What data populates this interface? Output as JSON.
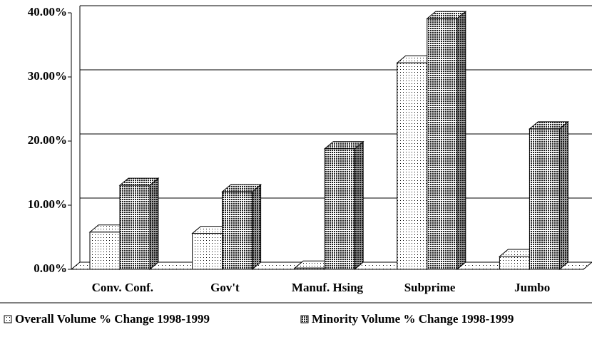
{
  "chart_data": {
    "type": "bar3d",
    "categories": [
      "Conv. Conf.",
      "Gov't",
      "Manuf. Hsing",
      "Subprime",
      "Jumbo"
    ],
    "series": [
      {
        "name": "Overall Volume % Change 1998-1999",
        "color": "#ffffff",
        "values": [
          5.8,
          5.6,
          0.2,
          32.2,
          2.0
        ]
      },
      {
        "name": "Minority Volume % Change 1998-1999",
        "color": "#555555",
        "values": [
          13.1,
          12.1,
          18.8,
          39.1,
          21.9
        ]
      }
    ],
    "ylim": [
      0,
      40
    ],
    "yticks": [
      {
        "value": 0,
        "label": "0.00%"
      },
      {
        "value": 10,
        "label": "10.00%"
      },
      {
        "value": 20,
        "label": "20.00%"
      },
      {
        "value": 30,
        "label": "30.00%"
      },
      {
        "value": 40,
        "label": "40.00%"
      }
    ],
    "grid": true,
    "legend": "bottom"
  }
}
